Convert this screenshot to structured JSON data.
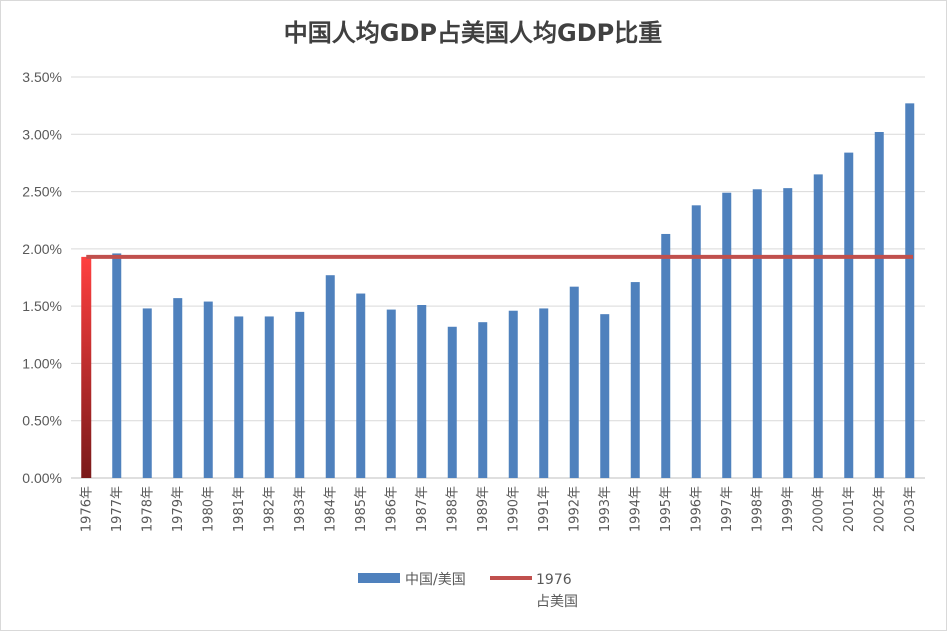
{
  "chart_data": {
    "type": "bar",
    "title": "中国人均GDP占美国人均GDP比重",
    "categories": [
      "1976年",
      "1977年",
      "1978年",
      "1979年",
      "1980年",
      "1981年",
      "1982年",
      "1983年",
      "1984年",
      "1985年",
      "1986年",
      "1987年",
      "1988年",
      "1989年",
      "1990年",
      "1991年",
      "1992年",
      "1993年",
      "1994年",
      "1995年",
      "1996年",
      "1997年",
      "1998年",
      "1999年",
      "2000年",
      "2001年",
      "2002年",
      "2003年"
    ],
    "series": [
      {
        "name": "中国/美国",
        "type": "bar",
        "color": "#4f81bd",
        "values": [
          1.93,
          1.96,
          1.48,
          1.57,
          1.54,
          1.41,
          1.41,
          1.45,
          1.77,
          1.61,
          1.47,
          1.51,
          1.32,
          1.36,
          1.46,
          1.48,
          1.67,
          1.43,
          1.71,
          2.13,
          2.38,
          2.49,
          2.52,
          2.53,
          2.65,
          2.84,
          3.02,
          3.27
        ]
      },
      {
        "name_lines": [
          "1976",
          "占美国"
        ],
        "type": "line",
        "color": "#c0504d",
        "value": 1.93
      }
    ],
    "ylim": [
      0,
      3.5
    ],
    "yticks": [
      "0.00%",
      "0.50%",
      "1.00%",
      "1.50%",
      "2.00%",
      "2.50%",
      "3.00%",
      "3.50%"
    ],
    "grid": true,
    "legend_position": "bottom"
  }
}
